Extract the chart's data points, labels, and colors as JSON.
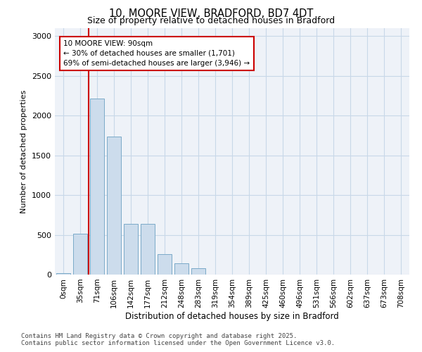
{
  "title": "10, MOORE VIEW, BRADFORD, BD7 4DT",
  "subtitle": "Size of property relative to detached houses in Bradford",
  "xlabel": "Distribution of detached houses by size in Bradford",
  "ylabel": "Number of detached properties",
  "bar_color": "#ccdcec",
  "bar_edge_color": "#7aaac8",
  "grid_color": "#c8d8e8",
  "background_color": "#eef2f8",
  "annotation_box_color": "#cc0000",
  "vline_color": "#cc0000",
  "categories": [
    "0sqm",
    "35sqm",
    "71sqm",
    "106sqm",
    "142sqm",
    "177sqm",
    "212sqm",
    "248sqm",
    "283sqm",
    "319sqm",
    "354sqm",
    "389sqm",
    "425sqm",
    "460sqm",
    "496sqm",
    "531sqm",
    "566sqm",
    "602sqm",
    "637sqm",
    "673sqm",
    "708sqm"
  ],
  "values": [
    20,
    510,
    2210,
    1740,
    640,
    640,
    260,
    140,
    80,
    0,
    0,
    0,
    0,
    0,
    0,
    0,
    0,
    0,
    0,
    0,
    0
  ],
  "vline_x_idx": 2,
  "annotation_text": "10 MOORE VIEW: 90sqm\n← 30% of detached houses are smaller (1,701)\n69% of semi-detached houses are larger (3,946) →",
  "ylim": [
    0,
    3100
  ],
  "yticks": [
    0,
    500,
    1000,
    1500,
    2000,
    2500,
    3000
  ],
  "footer": "Contains HM Land Registry data © Crown copyright and database right 2025.\nContains public sector information licensed under the Open Government Licence v3.0.",
  "figsize": [
    6.0,
    5.0
  ],
  "dpi": 100
}
